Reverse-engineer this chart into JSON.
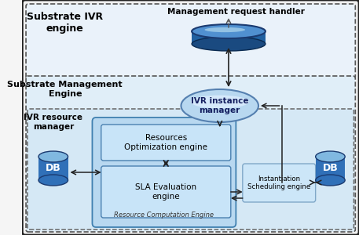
{
  "substrate_ivr_label": "Substrate IVR\nengine",
  "substrate_mgmt_label": "Substrate Management\nEngine",
  "ivr_resource_label": "IVR resource\nmanager",
  "mgmt_handler_label": "Management request handler",
  "ivr_instance_label": "IVR instance\nmanager",
  "resources_opt_label": "Resources\nOptimization engine",
  "sla_eval_label": "SLA Evaluation\nengine",
  "resource_comp_label": "Resource Computation Engine",
  "instantiation_label": "Instantiation\nScheduling engine",
  "db_label": "DB",
  "bg_color": "#f5f5f5",
  "outer_bg": "#f0f0f0",
  "ivr_box_bg": "#eaf2fa",
  "mgmt_box_bg": "#e0eef8",
  "res_box_bg": "#d5e8f5",
  "rce_box_bg": "#b8d8f0",
  "inner_box_bg": "#c8e4f8",
  "ise_box_bg": "#cce6f8",
  "disk_top": "#6baed6",
  "disk_body": "#2060a0",
  "disk_bot": "#1a4a80",
  "ellipse_fill": "#b8d8f0",
  "db_body": "#3070b8",
  "db_top": "#80b8e0",
  "db_dark": "#1a3a70"
}
